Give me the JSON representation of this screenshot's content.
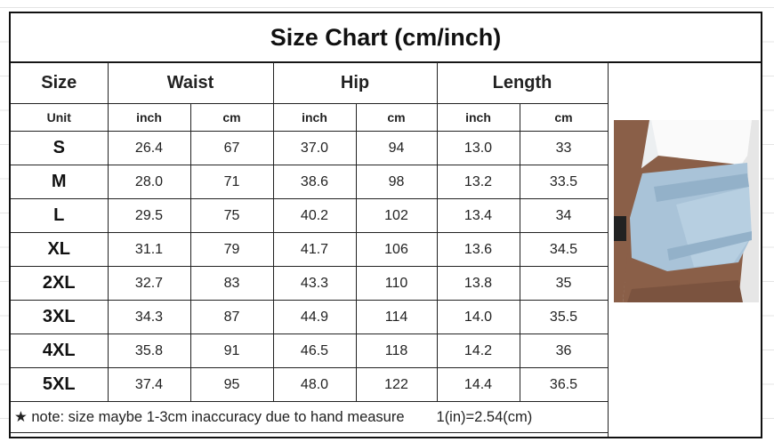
{
  "title": "Size Chart (cm/inch)",
  "headers": {
    "size": "Size",
    "waist": "Waist",
    "hip": "Hip",
    "length": "Length"
  },
  "unit_row": [
    "Unit",
    "inch",
    "cm",
    "inch",
    "cm",
    "inch",
    "cm"
  ],
  "rows": [
    [
      "S",
      "26.4",
      "67",
      "37.0",
      "94",
      "13.0",
      "33"
    ],
    [
      "M",
      "28.0",
      "71",
      "38.6",
      "98",
      "13.2",
      "33.5"
    ],
    [
      "L",
      "29.5",
      "75",
      "40.2",
      "102",
      "13.4",
      "34"
    ],
    [
      "XL",
      "31.1",
      "79",
      "41.7",
      "106",
      "13.6",
      "34.5"
    ],
    [
      "2XL",
      "32.7",
      "83",
      "43.3",
      "110",
      "13.8",
      "35"
    ],
    [
      "3XL",
      "34.3",
      "87",
      "44.9",
      "114",
      "14.0",
      "35.5"
    ],
    [
      "4XL",
      "35.8",
      "91",
      "46.5",
      "118",
      "14.2",
      "36"
    ],
    [
      "5XL",
      "37.4",
      "95",
      "48.0",
      "122",
      "14.4",
      "36.5"
    ]
  ],
  "note": "★ note: size maybe 1-3cm inaccuracy due to hand measure",
  "conversion": "1(in)=2.54(cm)",
  "colors": {
    "border": "#111111",
    "denim": "#a9c3d8",
    "skin": "#8a5f48"
  }
}
